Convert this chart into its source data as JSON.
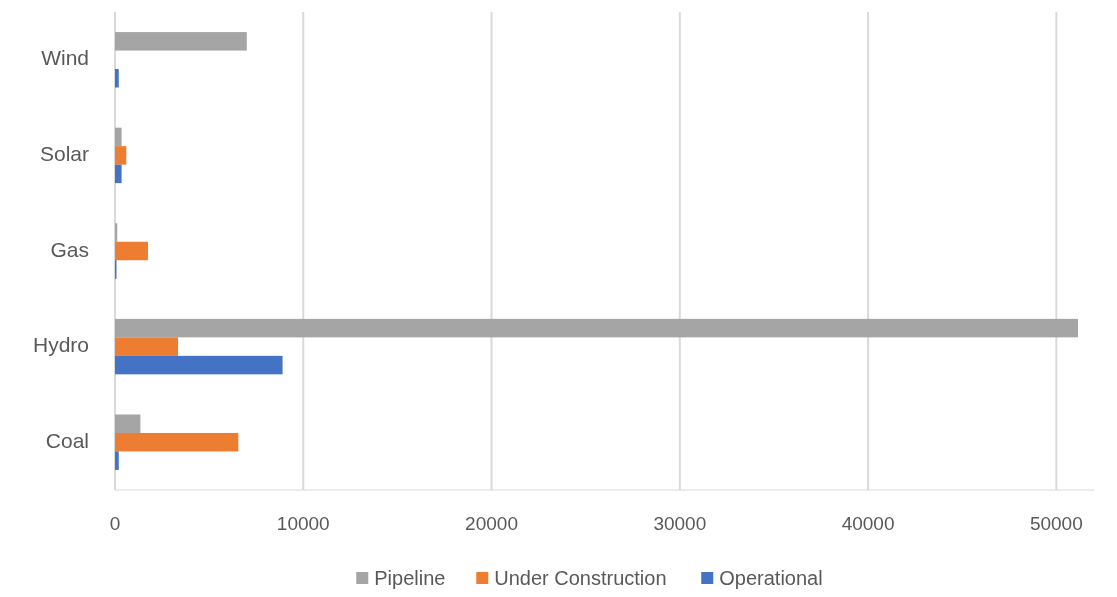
{
  "chart_data": {
    "type": "bar",
    "orientation": "horizontal",
    "categories": [
      "Wind",
      "Solar",
      "Gas",
      "Hydro",
      "Coal"
    ],
    "series": [
      {
        "name": "Pipeline",
        "color": "#a5a5a5",
        "values": [
          7000,
          350,
          120,
          51150,
          1350
        ]
      },
      {
        "name": "Under Construction",
        "color": "#ed7d31",
        "values": [
          0,
          600,
          1750,
          3350,
          6550
        ]
      },
      {
        "name": "Operational",
        "color": "#4472c4",
        "values": [
          200,
          350,
          80,
          8900,
          200
        ]
      }
    ],
    "xlim": [
      0,
      52000
    ],
    "xticks": [
      0,
      10000,
      20000,
      30000,
      40000,
      50000
    ],
    "grid": "x",
    "legend": "bottom"
  }
}
